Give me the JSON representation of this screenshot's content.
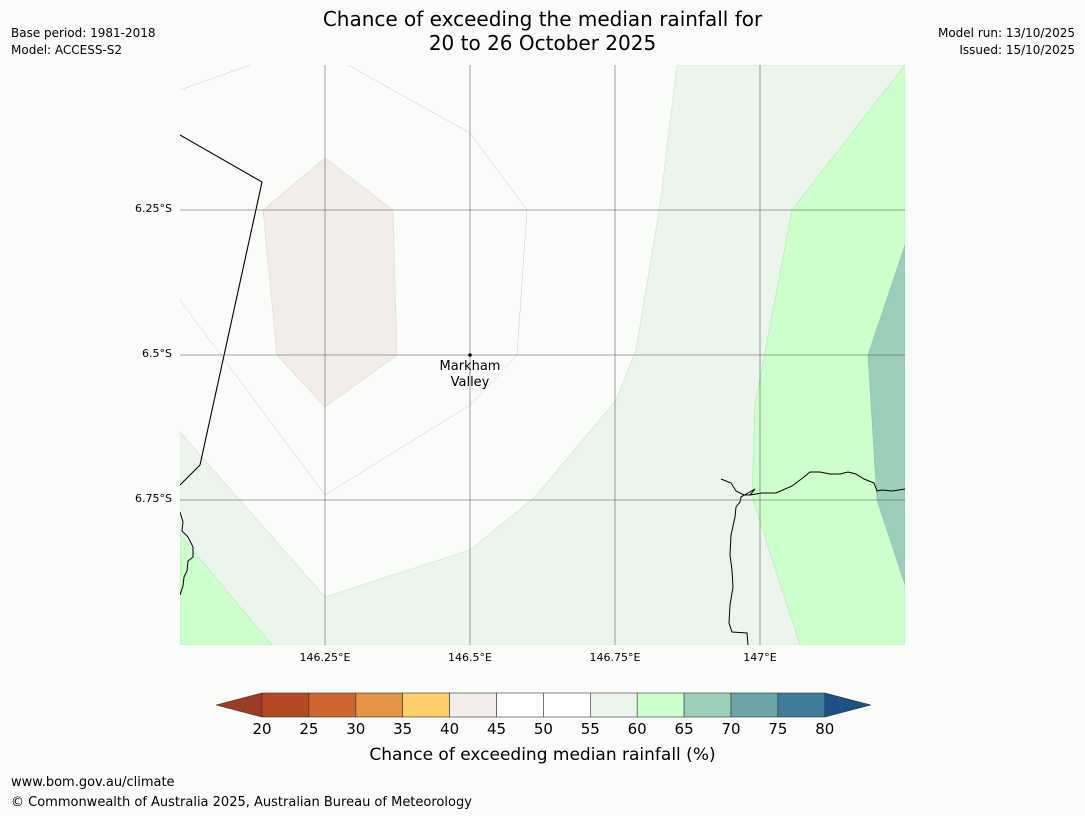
{
  "title": {
    "line1": "Chance of exceeding the median rainfall for",
    "line2": "20 to 26 October 2025"
  },
  "meta_left": {
    "base_period": "Base period: 1981-2018",
    "model": "Model: ACCESS-S2"
  },
  "meta_right": {
    "model_run": "Model run: 13/10/2025",
    "issued": "Issued: 15/10/2025"
  },
  "map": {
    "lat_labels": [
      "6.25°S",
      "6.5°S",
      "6.75°S"
    ],
    "lon_labels": [
      "146.25°E",
      "146.5°E",
      "146.75°E",
      "147°E"
    ],
    "place": {
      "line1": "Markham",
      "line2": "Valley"
    }
  },
  "colorbar": {
    "ticks": [
      "20",
      "25",
      "30",
      "35",
      "40",
      "45",
      "50",
      "55",
      "60",
      "65",
      "70",
      "75",
      "80"
    ],
    "colors": [
      "#9e3b24",
      "#b34a24",
      "#cf6632",
      "#e49445",
      "#fdd06b",
      "#f2ede8",
      "#ffffff",
      "#ffffff",
      "#ecf5ec",
      "#ccffcc",
      "#9ccfb9",
      "#6fa4a6",
      "#427b99",
      "#1c5185"
    ],
    "label": "Chance of exceeding median rainfall (%)"
  },
  "footer": {
    "url": "www.bom.gov.au/climate",
    "copyright": "© Commonwealth of Australia 2025, Australian Bureau of Meteorology"
  }
}
